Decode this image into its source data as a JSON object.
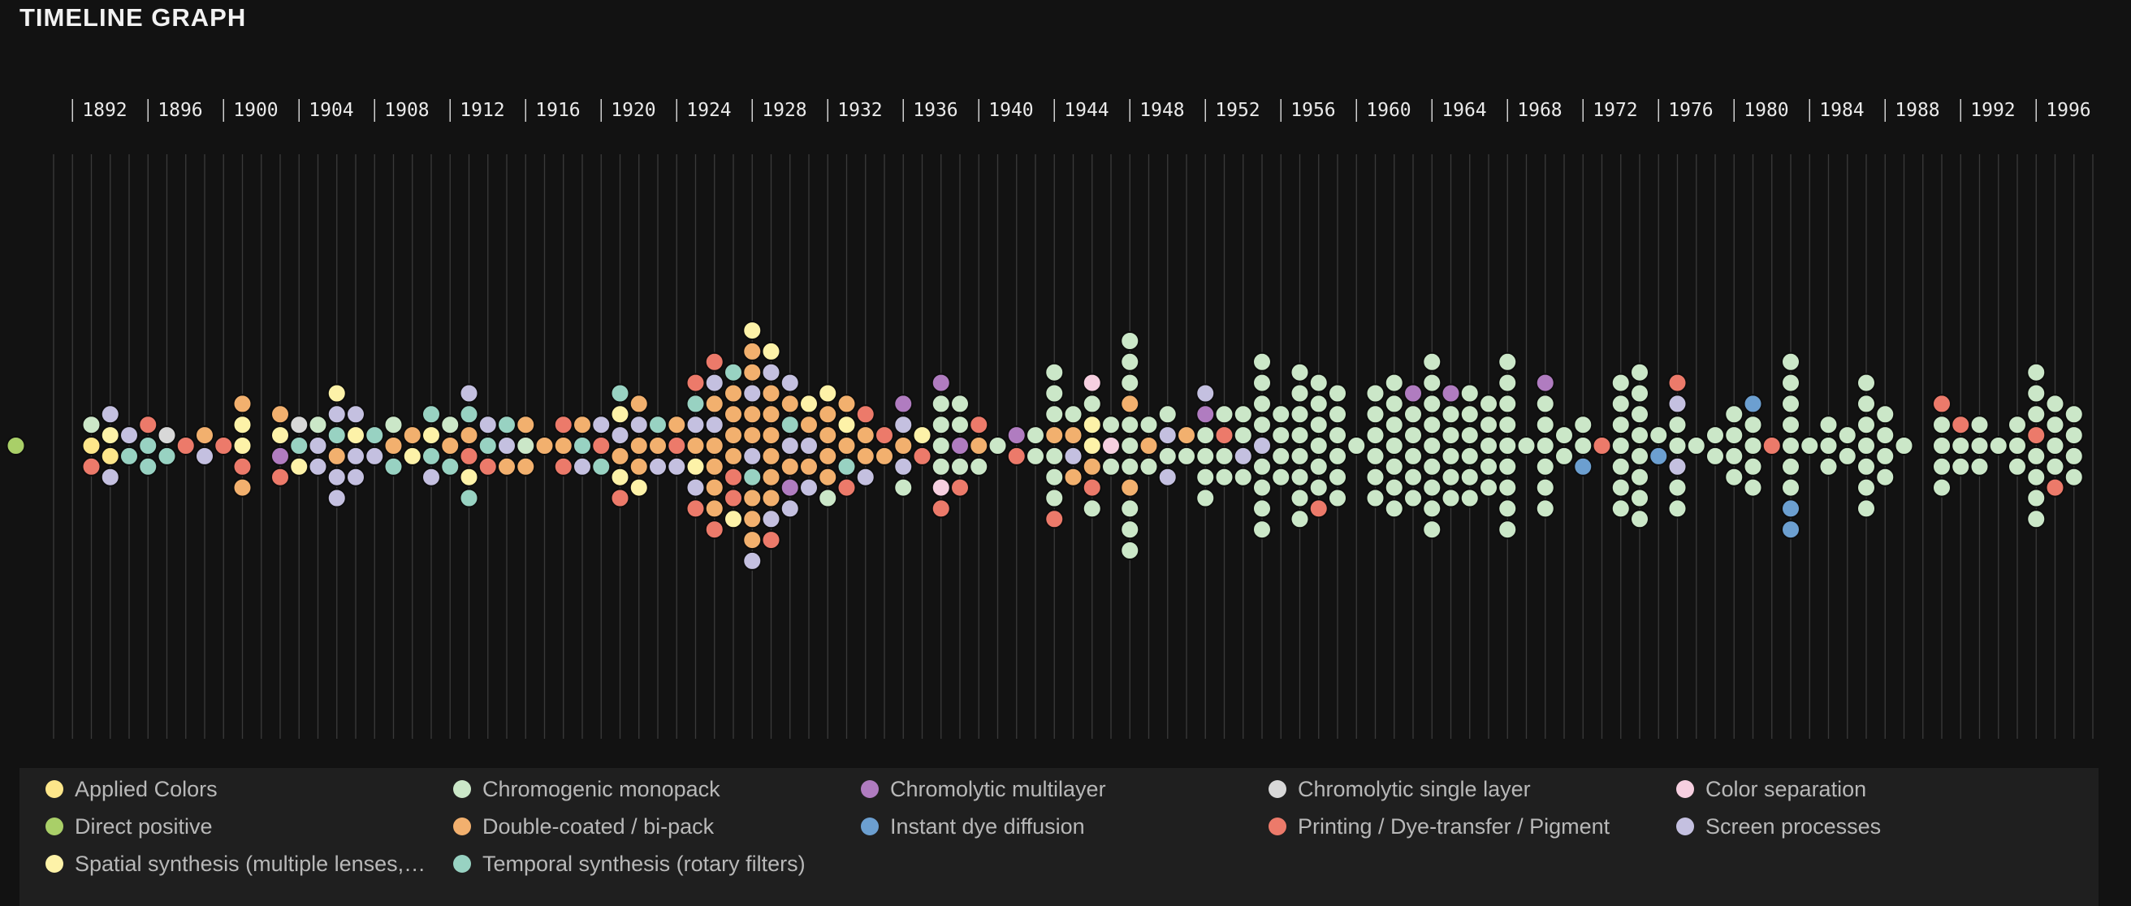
{
  "title": "TIMELINE GRAPH",
  "categories": [
    {
      "key": "applied",
      "label": "Applied Colors",
      "color": "#fde68a"
    },
    {
      "key": "chromogenic",
      "label": "Chromogenic monopack",
      "color": "#cbe7c8"
    },
    {
      "key": "chromolytic_multi",
      "label": "Chromolytic multilayer",
      "color": "#b07cc0"
    },
    {
      "key": "chromolytic_single",
      "label": "Chromolytic single layer",
      "color": "#d8d8d8"
    },
    {
      "key": "colorsep",
      "label": "Color separation",
      "color": "#f6cfe0"
    },
    {
      "key": "direct",
      "label": "Direct positive",
      "color": "#a9cf68"
    },
    {
      "key": "doublecoated",
      "label": "Double-coated / bi-pack",
      "color": "#f2b06e"
    },
    {
      "key": "instant",
      "label": "Instant dye diffusion",
      "color": "#6c9fd0"
    },
    {
      "key": "printing",
      "label": "Printing / Dye-transfer / Pigment",
      "color": "#ec7a6a"
    },
    {
      "key": "screen",
      "label": "Screen processes",
      "color": "#c4c0e0"
    },
    {
      "key": "spatial",
      "label": "Spatial synthesis (multiple lenses,…",
      "color": "#fdf2a8"
    },
    {
      "key": "temporal",
      "label": "Temporal synthesis (rotary filters)",
      "color": "#98d2c2"
    }
  ],
  "chart_data": {
    "type": "beeswarm",
    "title": "TIMELINE GRAPH",
    "x_range": [
      1891,
      1999
    ],
    "tick_labels": [
      "1892",
      "1896",
      "1900",
      "1904",
      "1908",
      "1912",
      "1916",
      "1920",
      "1924",
      "1928",
      "1932",
      "1936",
      "1940",
      "1944",
      "1948",
      "1952",
      "1956",
      "1960",
      "1964",
      "1968",
      "1972",
      "1976",
      "1980",
      "1984",
      "1988",
      "1992",
      "1996"
    ],
    "legend_position": "bottom",
    "columns": [
      {
        "year": 1889,
        "items": [
          "direct"
        ]
      },
      {
        "year": 1893,
        "items": [
          "chromogenic",
          "applied",
          "printing"
        ]
      },
      {
        "year": 1894,
        "items": [
          "screen",
          "spatial",
          "applied",
          "screen"
        ]
      },
      {
        "year": 1895,
        "items": [
          "screen",
          "temporal"
        ]
      },
      {
        "year": 1896,
        "items": [
          "printing",
          "temporal",
          "temporal"
        ]
      },
      {
        "year": 1897,
        "items": [
          "chromolytic_single",
          "temporal"
        ]
      },
      {
        "year": 1898,
        "items": [
          "printing"
        ]
      },
      {
        "year": 1899,
        "items": [
          "doublecoated",
          "screen"
        ]
      },
      {
        "year": 1900,
        "items": [
          "printing"
        ]
      },
      {
        "year": 1901,
        "items": [
          "doublecoated",
          "spatial",
          "spatial",
          "printing",
          "doublecoated"
        ]
      },
      {
        "year": 1903,
        "items": [
          "doublecoated",
          "spatial",
          "chromolytic_multi",
          "printing"
        ]
      },
      {
        "year": 1904,
        "items": [
          "chromolytic_single",
          "temporal",
          "spatial"
        ]
      },
      {
        "year": 1905,
        "items": [
          "chromogenic",
          "screen",
          "screen"
        ]
      },
      {
        "year": 1906,
        "items": [
          "spatial",
          "screen",
          "temporal",
          "doublecoated",
          "screen",
          "screen"
        ]
      },
      {
        "year": 1907,
        "items": [
          "screen",
          "spatial",
          "screen",
          "screen"
        ]
      },
      {
        "year": 1908,
        "items": [
          "temporal",
          "screen"
        ]
      },
      {
        "year": 1909,
        "items": [
          "chromogenic",
          "doublecoated",
          "temporal"
        ]
      },
      {
        "year": 1910,
        "items": [
          "doublecoated",
          "spatial"
        ]
      },
      {
        "year": 1911,
        "items": [
          "temporal",
          "spatial",
          "temporal",
          "screen"
        ]
      },
      {
        "year": 1912,
        "items": [
          "chromogenic",
          "doublecoated",
          "temporal"
        ]
      },
      {
        "year": 1913,
        "items": [
          "screen",
          "temporal",
          "doublecoated",
          "printing",
          "spatial",
          "temporal"
        ]
      },
      {
        "year": 1914,
        "items": [
          "screen",
          "temporal",
          "printing"
        ]
      },
      {
        "year": 1915,
        "items": [
          "temporal",
          "screen",
          "doublecoated"
        ]
      },
      {
        "year": 1916,
        "items": [
          "doublecoated",
          "chromogenic",
          "doublecoated"
        ]
      },
      {
        "year": 1917,
        "items": [
          "doublecoated"
        ]
      },
      {
        "year": 1918,
        "items": [
          "printing",
          "doublecoated",
          "printing"
        ]
      },
      {
        "year": 1919,
        "items": [
          "doublecoated",
          "temporal",
          "screen"
        ]
      },
      {
        "year": 1920,
        "items": [
          "screen",
          "printing",
          "temporal"
        ]
      },
      {
        "year": 1921,
        "items": [
          "temporal",
          "spatial",
          "screen",
          "doublecoated",
          "spatial",
          "printing"
        ]
      },
      {
        "year": 1922,
        "items": [
          "doublecoated",
          "screen",
          "doublecoated",
          "doublecoated",
          "spatial"
        ]
      },
      {
        "year": 1923,
        "items": [
          "temporal",
          "doublecoated",
          "screen"
        ]
      },
      {
        "year": 1924,
        "items": [
          "doublecoated",
          "printing",
          "screen"
        ]
      },
      {
        "year": 1925,
        "items": [
          "printing",
          "temporal",
          "screen",
          "doublecoated",
          "spatial",
          "screen",
          "printing"
        ]
      },
      {
        "year": 1926,
        "items": [
          "printing",
          "screen",
          "doublecoated",
          "screen",
          "doublecoated",
          "doublecoated",
          "doublecoated",
          "doublecoated",
          "printing"
        ]
      },
      {
        "year": 1927,
        "items": [
          "temporal",
          "doublecoated",
          "doublecoated",
          "doublecoated",
          "doublecoated",
          "printing",
          "printing",
          "spatial"
        ]
      },
      {
        "year": 1928,
        "items": [
          "spatial",
          "doublecoated",
          "doublecoated",
          "screen",
          "doublecoated",
          "doublecoated",
          "screen",
          "temporal",
          "doublecoated",
          "doublecoated",
          "doublecoated",
          "screen"
        ]
      },
      {
        "year": 1929,
        "items": [
          "spatial",
          "screen",
          "doublecoated",
          "doublecoated",
          "doublecoated",
          "doublecoated",
          "doublecoated",
          "doublecoated",
          "screen",
          "printing"
        ]
      },
      {
        "year": 1930,
        "items": [
          "screen",
          "doublecoated",
          "temporal",
          "screen",
          "doublecoated",
          "chromolytic_multi",
          "screen"
        ]
      },
      {
        "year": 1931,
        "items": [
          "spatial",
          "doublecoated",
          "screen",
          "doublecoated",
          "screen"
        ]
      },
      {
        "year": 1932,
        "items": [
          "spatial",
          "doublecoated",
          "doublecoated",
          "doublecoated",
          "doublecoated",
          "chromogenic"
        ]
      },
      {
        "year": 1933,
        "items": [
          "doublecoated",
          "spatial",
          "doublecoated",
          "temporal",
          "printing"
        ]
      },
      {
        "year": 1934,
        "items": [
          "printing",
          "doublecoated",
          "doublecoated",
          "screen"
        ]
      },
      {
        "year": 1935,
        "items": [
          "printing",
          "doublecoated"
        ]
      },
      {
        "year": 1936,
        "items": [
          "chromolytic_multi",
          "screen",
          "doublecoated",
          "screen",
          "chromogenic"
        ]
      },
      {
        "year": 1937,
        "items": [
          "spatial",
          "printing"
        ]
      },
      {
        "year": 1938,
        "items": [
          "chromolytic_multi",
          "chromogenic",
          "chromogenic",
          "chromogenic",
          "chromogenic",
          "colorsep",
          "printing"
        ]
      },
      {
        "year": 1939,
        "items": [
          "chromogenic",
          "chromogenic",
          "chromolytic_multi",
          "chromogenic",
          "printing"
        ]
      },
      {
        "year": 1940,
        "items": [
          "printing",
          "doublecoated",
          "chromogenic"
        ]
      },
      {
        "year": 1941,
        "items": [
          "chromogenic"
        ]
      },
      {
        "year": 1942,
        "items": [
          "chromolytic_multi",
          "printing"
        ]
      },
      {
        "year": 1943,
        "items": [
          "chromogenic",
          "chromogenic"
        ]
      },
      {
        "year": 1944,
        "items": [
          "chromogenic",
          "chromogenic",
          "chromogenic",
          "doublecoated",
          "chromogenic",
          "chromogenic",
          "chromogenic",
          "printing"
        ]
      },
      {
        "year": 1945,
        "items": [
          "chromogenic",
          "doublecoated",
          "screen",
          "doublecoated"
        ]
      },
      {
        "year": 1946,
        "items": [
          "colorsep",
          "chromogenic",
          "spatial",
          "spatial",
          "doublecoated",
          "printing",
          "chromogenic"
        ]
      },
      {
        "year": 1947,
        "items": [
          "chromogenic",
          "colorsep",
          "chromogenic"
        ]
      },
      {
        "year": 1948,
        "items": [
          "chromogenic",
          "chromogenic",
          "chromogenic",
          "doublecoated",
          "chromogenic",
          "chromogenic",
          "chromogenic",
          "doublecoated",
          "chromogenic",
          "chromogenic",
          "chromogenic"
        ]
      },
      {
        "year": 1949,
        "items": [
          "chromogenic",
          "doublecoated",
          "chromogenic"
        ]
      },
      {
        "year": 1950,
        "items": [
          "chromogenic",
          "screen",
          "chromogenic",
          "screen"
        ]
      },
      {
        "year": 1951,
        "items": [
          "doublecoated",
          "chromogenic"
        ]
      },
      {
        "year": 1952,
        "items": [
          "screen",
          "chromolytic_multi",
          "chromogenic",
          "chromogenic",
          "chromogenic",
          "chromogenic"
        ]
      },
      {
        "year": 1953,
        "items": [
          "chromogenic",
          "printing",
          "chromogenic",
          "chromogenic"
        ]
      },
      {
        "year": 1954,
        "items": [
          "chromogenic",
          "chromogenic",
          "screen",
          "chromogenic"
        ]
      },
      {
        "year": 1955,
        "items": [
          "chromogenic",
          "chromogenic",
          "chromogenic",
          "chromogenic",
          "screen",
          "chromogenic",
          "chromogenic",
          "chromogenic",
          "chromogenic"
        ]
      },
      {
        "year": 1956,
        "items": [
          "chromogenic",
          "chromogenic",
          "chromogenic",
          "chromogenic"
        ]
      },
      {
        "year": 1957,
        "items": [
          "chromogenic",
          "chromogenic",
          "chromogenic",
          "chromogenic",
          "chromogenic",
          "chromogenic",
          "chromogenic",
          "chromogenic"
        ]
      },
      {
        "year": 1958,
        "items": [
          "chromogenic",
          "chromogenic",
          "chromogenic",
          "chromogenic",
          "chromogenic",
          "chromogenic",
          "printing"
        ]
      },
      {
        "year": 1959,
        "items": [
          "chromogenic",
          "chromogenic",
          "chromogenic",
          "chromogenic",
          "chromogenic",
          "chromogenic"
        ]
      },
      {
        "year": 1960,
        "items": [
          "chromogenic"
        ]
      },
      {
        "year": 1961,
        "items": [
          "chromogenic",
          "chromogenic",
          "chromogenic",
          "chromogenic",
          "chromogenic",
          "chromogenic"
        ]
      },
      {
        "year": 1962,
        "items": [
          "chromogenic",
          "chromogenic",
          "chromogenic",
          "chromogenic",
          "chromogenic",
          "chromogenic",
          "chromogenic"
        ]
      },
      {
        "year": 1963,
        "items": [
          "chromolytic_multi",
          "chromogenic",
          "chromogenic",
          "chromogenic",
          "chromogenic",
          "chromogenic"
        ]
      },
      {
        "year": 1964,
        "items": [
          "chromogenic",
          "chromogenic",
          "chromogenic",
          "chromogenic",
          "chromogenic",
          "chromogenic",
          "chromogenic",
          "chromogenic",
          "chromogenic"
        ]
      },
      {
        "year": 1965,
        "items": [
          "chromolytic_multi",
          "chromogenic",
          "chromogenic",
          "chromogenic",
          "chromogenic",
          "chromogenic"
        ]
      },
      {
        "year": 1966,
        "items": [
          "chromogenic",
          "chromogenic",
          "chromogenic",
          "chromogenic",
          "chromogenic",
          "chromogenic"
        ]
      },
      {
        "year": 1967,
        "items": [
          "chromogenic",
          "chromogenic",
          "chromogenic",
          "chromogenic",
          "chromogenic"
        ]
      },
      {
        "year": 1968,
        "items": [
          "chromogenic",
          "chromogenic",
          "chromogenic",
          "chromogenic",
          "chromogenic",
          "chromogenic",
          "chromogenic",
          "chromogenic",
          "chromogenic"
        ]
      },
      {
        "year": 1969,
        "items": [
          "chromogenic"
        ]
      },
      {
        "year": 1970,
        "items": [
          "chromolytic_multi",
          "chromogenic",
          "chromogenic",
          "chromogenic",
          "chromogenic",
          "chromogenic",
          "chromogenic"
        ]
      },
      {
        "year": 1971,
        "items": [
          "chromogenic",
          "chromogenic"
        ]
      },
      {
        "year": 1972,
        "items": [
          "chromogenic",
          "chromogenic",
          "instant"
        ]
      },
      {
        "year": 1973,
        "items": [
          "printing"
        ]
      },
      {
        "year": 1974,
        "items": [
          "chromogenic",
          "chromogenic",
          "chromogenic",
          "chromogenic",
          "chromogenic",
          "chromogenic",
          "chromogenic"
        ]
      },
      {
        "year": 1975,
        "items": [
          "chromogenic",
          "chromogenic",
          "chromogenic",
          "chromogenic",
          "chromogenic",
          "chromogenic",
          "chromogenic",
          "chromogenic"
        ]
      },
      {
        "year": 1976,
        "items": [
          "chromogenic",
          "instant"
        ]
      },
      {
        "year": 1977,
        "items": [
          "printing",
          "screen",
          "chromogenic",
          "chromogenic",
          "screen",
          "chromogenic",
          "chromogenic"
        ]
      },
      {
        "year": 1978,
        "items": [
          "chromogenic"
        ]
      },
      {
        "year": 1979,
        "items": [
          "chromogenic",
          "chromogenic"
        ]
      },
      {
        "year": 1980,
        "items": [
          "chromogenic",
          "chromogenic",
          "chromogenic",
          "chromogenic"
        ]
      },
      {
        "year": 1981,
        "items": [
          "instant",
          "chromogenic",
          "chromogenic",
          "chromogenic",
          "chromogenic"
        ]
      },
      {
        "year": 1982,
        "items": [
          "printing"
        ]
      },
      {
        "year": 1983,
        "items": [
          "chromogenic",
          "chromogenic",
          "chromogenic",
          "chromogenic",
          "chromogenic",
          "chromogenic",
          "chromogenic",
          "instant",
          "instant"
        ]
      },
      {
        "year": 1984,
        "items": [
          "chromogenic"
        ]
      },
      {
        "year": 1985,
        "items": [
          "chromogenic",
          "chromogenic",
          "chromogenic"
        ]
      },
      {
        "year": 1986,
        "items": [
          "chromogenic",
          "chromogenic"
        ]
      },
      {
        "year": 1987,
        "items": [
          "chromogenic",
          "chromogenic",
          "chromogenic",
          "chromogenic",
          "chromogenic",
          "chromogenic",
          "chromogenic"
        ]
      },
      {
        "year": 1988,
        "items": [
          "chromogenic",
          "chromogenic",
          "chromogenic",
          "chromogenic"
        ]
      },
      {
        "year": 1989,
        "items": [
          "chromogenic"
        ]
      },
      {
        "year": 1991,
        "items": [
          "printing",
          "chromogenic",
          "chromogenic",
          "chromogenic",
          "chromogenic"
        ]
      },
      {
        "year": 1992,
        "items": [
          "printing",
          "chromogenic",
          "chromogenic"
        ]
      },
      {
        "year": 1993,
        "items": [
          "chromogenic",
          "chromogenic",
          "chromogenic"
        ]
      },
      {
        "year": 1994,
        "items": [
          "chromogenic"
        ]
      },
      {
        "year": 1995,
        "items": [
          "chromogenic",
          "chromogenic",
          "chromogenic"
        ]
      },
      {
        "year": 1996,
        "items": [
          "chromogenic",
          "chromogenic",
          "chromogenic",
          "printing",
          "chromogenic",
          "chromogenic",
          "chromogenic",
          "chromogenic"
        ]
      },
      {
        "year": 1997,
        "items": [
          "chromogenic",
          "chromogenic",
          "chromogenic",
          "chromogenic",
          "printing"
        ]
      },
      {
        "year": 1998,
        "items": [
          "chromogenic",
          "chromogenic",
          "chromogenic",
          "chromogenic"
        ]
      }
    ]
  }
}
